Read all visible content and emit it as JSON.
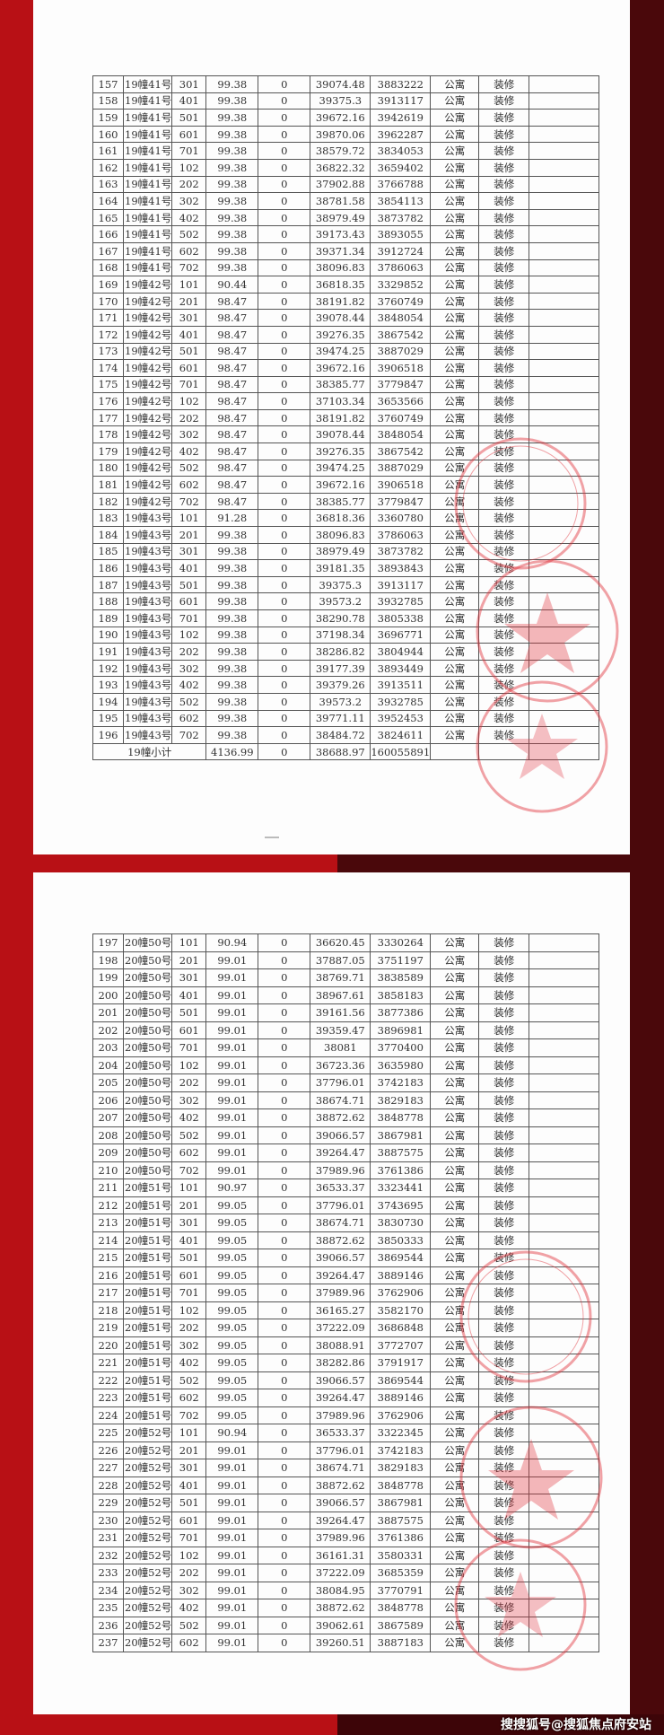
{
  "colors": {
    "background_left": "#b81015",
    "background_right": "#4a080b",
    "seal": "#e0303a"
  },
  "table1": {
    "rows": [
      [
        "157",
        "19幢41号",
        "301",
        "99.38",
        "0",
        "39074.48",
        "3883222",
        "公寓",
        "装修",
        ""
      ],
      [
        "158",
        "19幢41号",
        "401",
        "99.38",
        "0",
        "39375.3",
        "3913117",
        "公寓",
        "装修",
        ""
      ],
      [
        "159",
        "19幢41号",
        "501",
        "99.38",
        "0",
        "39672.16",
        "3942619",
        "公寓",
        "装修",
        ""
      ],
      [
        "160",
        "19幢41号",
        "601",
        "99.38",
        "0",
        "39870.06",
        "3962287",
        "公寓",
        "装修",
        ""
      ],
      [
        "161",
        "19幢41号",
        "701",
        "99.38",
        "0",
        "38579.72",
        "3834053",
        "公寓",
        "装修",
        ""
      ],
      [
        "162",
        "19幢41号",
        "102",
        "99.38",
        "0",
        "36822.32",
        "3659402",
        "公寓",
        "装修",
        ""
      ],
      [
        "163",
        "19幢41号",
        "202",
        "99.38",
        "0",
        "37902.88",
        "3766788",
        "公寓",
        "装修",
        ""
      ],
      [
        "164",
        "19幢41号",
        "302",
        "99.38",
        "0",
        "38781.58",
        "3854113",
        "公寓",
        "装修",
        ""
      ],
      [
        "165",
        "19幢41号",
        "402",
        "99.38",
        "0",
        "38979.49",
        "3873782",
        "公寓",
        "装修",
        ""
      ],
      [
        "166",
        "19幢41号",
        "502",
        "99.38",
        "0",
        "39173.43",
        "3893055",
        "公寓",
        "装修",
        ""
      ],
      [
        "167",
        "19幢41号",
        "602",
        "99.38",
        "0",
        "39371.34",
        "3912724",
        "公寓",
        "装修",
        ""
      ],
      [
        "168",
        "19幢41号",
        "702",
        "99.38",
        "0",
        "38096.83",
        "3786063",
        "公寓",
        "装修",
        ""
      ],
      [
        "169",
        "19幢42号",
        "101",
        "90.44",
        "0",
        "36818.35",
        "3329852",
        "公寓",
        "装修",
        ""
      ],
      [
        "170",
        "19幢42号",
        "201",
        "98.47",
        "0",
        "38191.82",
        "3760749",
        "公寓",
        "装修",
        ""
      ],
      [
        "171",
        "19幢42号",
        "301",
        "98.47",
        "0",
        "39078.44",
        "3848054",
        "公寓",
        "装修",
        ""
      ],
      [
        "172",
        "19幢42号",
        "401",
        "98.47",
        "0",
        "39276.35",
        "3867542",
        "公寓",
        "装修",
        ""
      ],
      [
        "173",
        "19幢42号",
        "501",
        "98.47",
        "0",
        "39474.25",
        "3887029",
        "公寓",
        "装修",
        ""
      ],
      [
        "174",
        "19幢42号",
        "601",
        "98.47",
        "0",
        "39672.16",
        "3906518",
        "公寓",
        "装修",
        ""
      ],
      [
        "175",
        "19幢42号",
        "701",
        "98.47",
        "0",
        "38385.77",
        "3779847",
        "公寓",
        "装修",
        ""
      ],
      [
        "176",
        "19幢42号",
        "102",
        "98.47",
        "0",
        "37103.34",
        "3653566",
        "公寓",
        "装修",
        ""
      ],
      [
        "177",
        "19幢42号",
        "202",
        "98.47",
        "0",
        "38191.82",
        "3760749",
        "公寓",
        "装修",
        ""
      ],
      [
        "178",
        "19幢42号",
        "302",
        "98.47",
        "0",
        "39078.44",
        "3848054",
        "公寓",
        "装修",
        ""
      ],
      [
        "179",
        "19幢42号",
        "402",
        "98.47",
        "0",
        "39276.35",
        "3867542",
        "公寓",
        "装修",
        ""
      ],
      [
        "180",
        "19幢42号",
        "502",
        "98.47",
        "0",
        "39474.25",
        "3887029",
        "公寓",
        "装修",
        ""
      ],
      [
        "181",
        "19幢42号",
        "602",
        "98.47",
        "0",
        "39672.16",
        "3906518",
        "公寓",
        "装修",
        ""
      ],
      [
        "182",
        "19幢42号",
        "702",
        "98.47",
        "0",
        "38385.77",
        "3779847",
        "公寓",
        "装修",
        ""
      ],
      [
        "183",
        "19幢43号",
        "101",
        "91.28",
        "0",
        "36818.36",
        "3360780",
        "公寓",
        "装修",
        ""
      ],
      [
        "184",
        "19幢43号",
        "201",
        "99.38",
        "0",
        "38096.83",
        "3786063",
        "公寓",
        "装修",
        ""
      ],
      [
        "185",
        "19幢43号",
        "301",
        "99.38",
        "0",
        "38979.49",
        "3873782",
        "公寓",
        "装修",
        ""
      ],
      [
        "186",
        "19幢43号",
        "401",
        "99.38",
        "0",
        "39181.35",
        "3893843",
        "公寓",
        "装修",
        ""
      ],
      [
        "187",
        "19幢43号",
        "501",
        "99.38",
        "0",
        "39375.3",
        "3913117",
        "公寓",
        "装修",
        ""
      ],
      [
        "188",
        "19幢43号",
        "601",
        "99.38",
        "0",
        "39573.2",
        "3932785",
        "公寓",
        "装修",
        ""
      ],
      [
        "189",
        "19幢43号",
        "701",
        "99.38",
        "0",
        "38290.78",
        "3805338",
        "公寓",
        "装修",
        ""
      ],
      [
        "190",
        "19幢43号",
        "102",
        "99.38",
        "0",
        "37198.34",
        "3696771",
        "公寓",
        "装修",
        ""
      ],
      [
        "191",
        "19幢43号",
        "202",
        "99.38",
        "0",
        "38286.82",
        "3804944",
        "公寓",
        "装修",
        ""
      ],
      [
        "192",
        "19幢43号",
        "302",
        "99.38",
        "0",
        "39177.39",
        "3893449",
        "公寓",
        "装修",
        ""
      ],
      [
        "193",
        "19幢43号",
        "402",
        "99.38",
        "0",
        "39379.26",
        "3913511",
        "公寓",
        "装修",
        ""
      ],
      [
        "194",
        "19幢43号",
        "502",
        "99.38",
        "0",
        "39573.2",
        "3932785",
        "公寓",
        "装修",
        ""
      ],
      [
        "195",
        "19幢43号",
        "602",
        "99.38",
        "0",
        "39771.11",
        "3952453",
        "公寓",
        "装修",
        ""
      ],
      [
        "196",
        "19幢43号",
        "702",
        "99.38",
        "0",
        "38484.72",
        "3824611",
        "公寓",
        "装修",
        ""
      ]
    ],
    "subtotal": {
      "label": "19幢小计",
      "area": "4136.99",
      "zero": "0",
      "avg_price": "38688.97",
      "total": "160055891"
    }
  },
  "table2": {
    "rows": [
      [
        "197",
        "20幢50号",
        "101",
        "90.94",
        "0",
        "36620.45",
        "3330264",
        "公寓",
        "装修",
        ""
      ],
      [
        "198",
        "20幢50号",
        "201",
        "99.01",
        "0",
        "37887.05",
        "3751197",
        "公寓",
        "装修",
        ""
      ],
      [
        "199",
        "20幢50号",
        "301",
        "99.01",
        "0",
        "38769.71",
        "3838589",
        "公寓",
        "装修",
        ""
      ],
      [
        "200",
        "20幢50号",
        "401",
        "99.01",
        "0",
        "38967.61",
        "3858183",
        "公寓",
        "装修",
        ""
      ],
      [
        "201",
        "20幢50号",
        "501",
        "99.01",
        "0",
        "39161.56",
        "3877386",
        "公寓",
        "装修",
        ""
      ],
      [
        "202",
        "20幢50号",
        "601",
        "99.01",
        "0",
        "39359.47",
        "3896981",
        "公寓",
        "装修",
        ""
      ],
      [
        "203",
        "20幢50号",
        "701",
        "99.01",
        "0",
        "38081",
        "3770400",
        "公寓",
        "装修",
        ""
      ],
      [
        "204",
        "20幢50号",
        "102",
        "99.01",
        "0",
        "36723.36",
        "3635980",
        "公寓",
        "装修",
        ""
      ],
      [
        "205",
        "20幢50号",
        "202",
        "99.01",
        "0",
        "37796.01",
        "3742183",
        "公寓",
        "装修",
        ""
      ],
      [
        "206",
        "20幢50号",
        "302",
        "99.01",
        "0",
        "38674.71",
        "3829183",
        "公寓",
        "装修",
        ""
      ],
      [
        "207",
        "20幢50号",
        "402",
        "99.01",
        "0",
        "38872.62",
        "3848778",
        "公寓",
        "装修",
        ""
      ],
      [
        "208",
        "20幢50号",
        "502",
        "99.01",
        "0",
        "39066.57",
        "3867981",
        "公寓",
        "装修",
        ""
      ],
      [
        "209",
        "20幢50号",
        "602",
        "99.01",
        "0",
        "39264.47",
        "3887575",
        "公寓",
        "装修",
        ""
      ],
      [
        "210",
        "20幢50号",
        "702",
        "99.01",
        "0",
        "37989.96",
        "3761386",
        "公寓",
        "装修",
        ""
      ],
      [
        "211",
        "20幢51号",
        "101",
        "90.97",
        "0",
        "36533.37",
        "3323441",
        "公寓",
        "装修",
        ""
      ],
      [
        "212",
        "20幢51号",
        "201",
        "99.05",
        "0",
        "37796.01",
        "3743695",
        "公寓",
        "装修",
        ""
      ],
      [
        "213",
        "20幢51号",
        "301",
        "99.05",
        "0",
        "38674.71",
        "3830730",
        "公寓",
        "装修",
        ""
      ],
      [
        "214",
        "20幢51号",
        "401",
        "99.05",
        "0",
        "38872.62",
        "3850333",
        "公寓",
        "装修",
        ""
      ],
      [
        "215",
        "20幢51号",
        "501",
        "99.05",
        "0",
        "39066.57",
        "3869544",
        "公寓",
        "装修",
        ""
      ],
      [
        "216",
        "20幢51号",
        "601",
        "99.05",
        "0",
        "39264.47",
        "3889146",
        "公寓",
        "装修",
        ""
      ],
      [
        "217",
        "20幢51号",
        "701",
        "99.05",
        "0",
        "37989.96",
        "3762906",
        "公寓",
        "装修",
        ""
      ],
      [
        "218",
        "20幢51号",
        "102",
        "99.05",
        "0",
        "36165.27",
        "3582170",
        "公寓",
        "装修",
        ""
      ],
      [
        "219",
        "20幢51号",
        "202",
        "99.05",
        "0",
        "37222.09",
        "3686848",
        "公寓",
        "装修",
        ""
      ],
      [
        "220",
        "20幢51号",
        "302",
        "99.05",
        "0",
        "38088.91",
        "3772707",
        "公寓",
        "装修",
        ""
      ],
      [
        "221",
        "20幢51号",
        "402",
        "99.05",
        "0",
        "38282.86",
        "3791917",
        "公寓",
        "装修",
        ""
      ],
      [
        "222",
        "20幢51号",
        "502",
        "99.05",
        "0",
        "39066.57",
        "3869544",
        "公寓",
        "装修",
        ""
      ],
      [
        "223",
        "20幢51号",
        "602",
        "99.05",
        "0",
        "39264.47",
        "3889146",
        "公寓",
        "装修",
        ""
      ],
      [
        "224",
        "20幢51号",
        "702",
        "99.05",
        "0",
        "37989.96",
        "3762906",
        "公寓",
        "装修",
        ""
      ],
      [
        "225",
        "20幢52号",
        "101",
        "90.94",
        "0",
        "36533.37",
        "3322345",
        "公寓",
        "装修",
        ""
      ],
      [
        "226",
        "20幢52号",
        "201",
        "99.01",
        "0",
        "37796.01",
        "3742183",
        "公寓",
        "装修",
        ""
      ],
      [
        "227",
        "20幢52号",
        "301",
        "99.01",
        "0",
        "38674.71",
        "3829183",
        "公寓",
        "装修",
        ""
      ],
      [
        "228",
        "20幢52号",
        "401",
        "99.01",
        "0",
        "38872.62",
        "3848778",
        "公寓",
        "装修",
        ""
      ],
      [
        "229",
        "20幢52号",
        "501",
        "99.01",
        "0",
        "39066.57",
        "3867981",
        "公寓",
        "装修",
        ""
      ],
      [
        "230",
        "20幢52号",
        "601",
        "99.01",
        "0",
        "39264.47",
        "3887575",
        "公寓",
        "装修",
        ""
      ],
      [
        "231",
        "20幢52号",
        "701",
        "99.01",
        "0",
        "37989.96",
        "3761386",
        "公寓",
        "装修",
        ""
      ],
      [
        "232",
        "20幢52号",
        "102",
        "99.01",
        "0",
        "36161.31",
        "3580331",
        "公寓",
        "装修",
        ""
      ],
      [
        "233",
        "20幢52号",
        "202",
        "99.01",
        "0",
        "37222.09",
        "3685359",
        "公寓",
        "装修",
        ""
      ],
      [
        "234",
        "20幢52号",
        "302",
        "99.01",
        "0",
        "38084.95",
        "3770791",
        "公寓",
        "装修",
        ""
      ],
      [
        "235",
        "20幢52号",
        "402",
        "99.01",
        "0",
        "38872.62",
        "3848778",
        "公寓",
        "装修",
        ""
      ],
      [
        "236",
        "20幢52号",
        "502",
        "99.01",
        "0",
        "39062.61",
        "3867589",
        "公寓",
        "装修",
        ""
      ],
      [
        "237",
        "20幢52号",
        "602",
        "99.01",
        "0",
        "39260.51",
        "3887183",
        "公寓",
        "装修",
        ""
      ]
    ]
  },
  "footer": {
    "watermark": "搜搜狐号@搜狐焦点府安站"
  }
}
